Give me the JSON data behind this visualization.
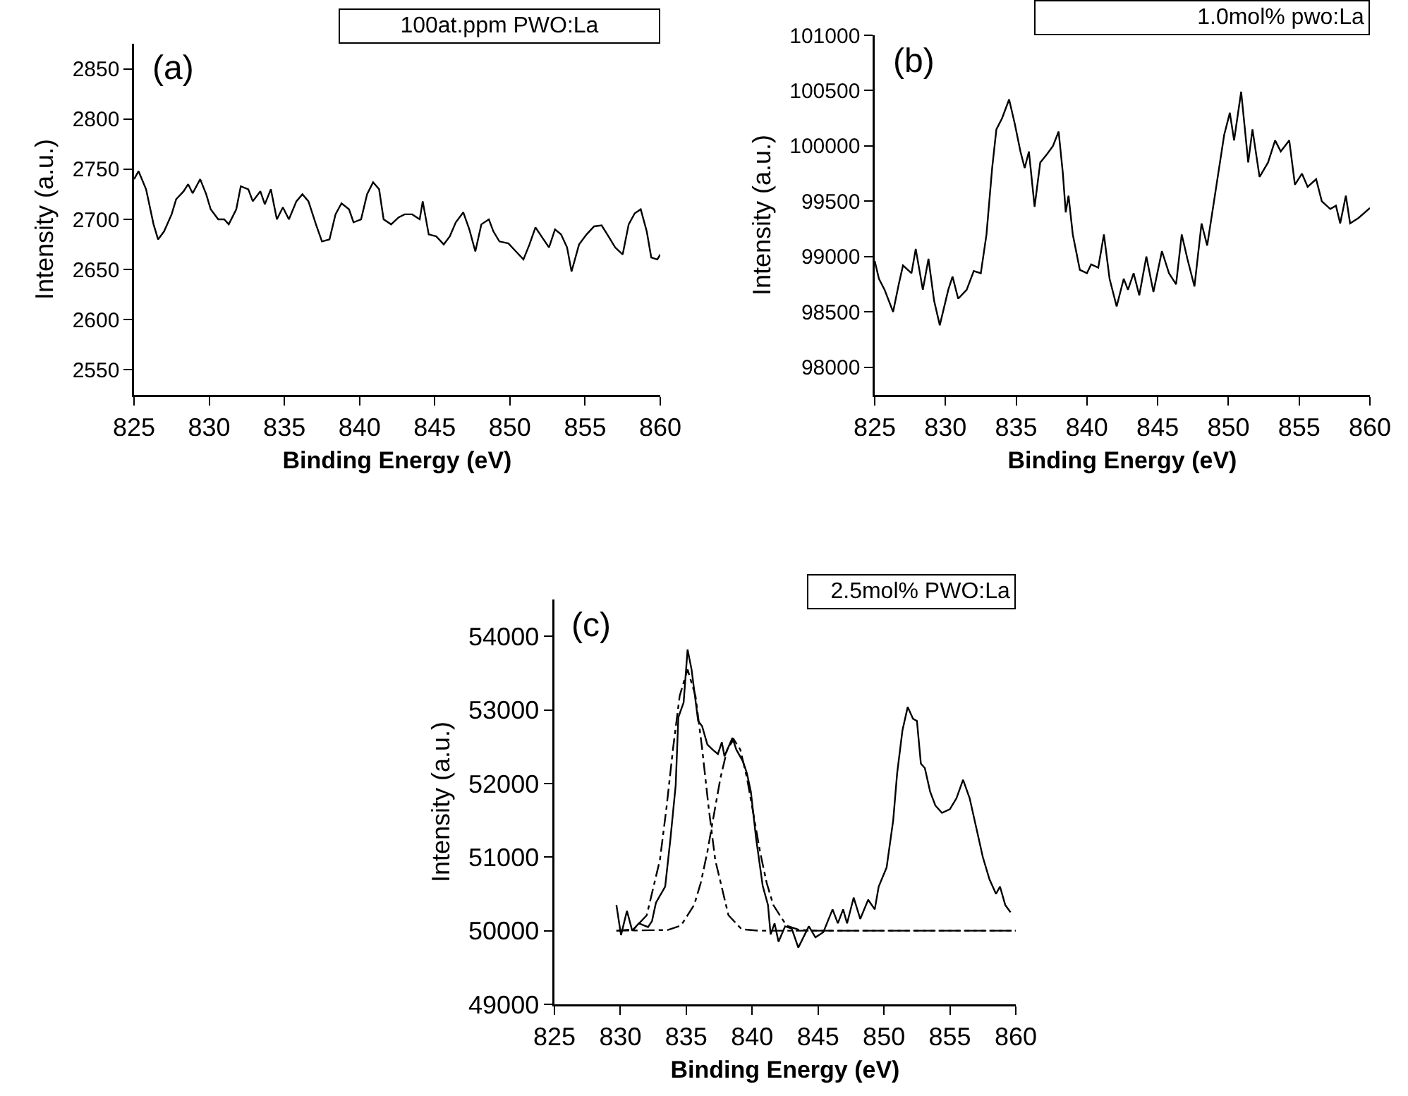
{
  "chart_data": [
    {
      "type": "line",
      "annotations": [
        "(a)",
        "100at.ppm PWO:La"
      ],
      "xlabel": "Binding Energy (eV)",
      "ylabel": "Intensity (a.u.)",
      "xlim": [
        825,
        860
      ],
      "xticks": [
        825,
        830,
        835,
        840,
        845,
        850,
        855,
        860
      ],
      "ylim": [
        2525,
        2875
      ],
      "yticks": [
        2550,
        2600,
        2650,
        2700,
        2750,
        2800,
        2850
      ],
      "series": [
        {
          "color": "#000000",
          "x": [
            825,
            825.3,
            825.8,
            826.3,
            826.6,
            827,
            827.5,
            827.8,
            828.3,
            828.6,
            828.9,
            829.4,
            829.8,
            830.1,
            830.6,
            831,
            831.3,
            831.8,
            832.1,
            832.6,
            832.9,
            833.4,
            833.7,
            834.1,
            834.5,
            834.9,
            835.3,
            835.8,
            836.2,
            836.6,
            837.1,
            837.5,
            838,
            838.4,
            838.8,
            839.3,
            839.6,
            840.1,
            840.5,
            840.9,
            841.3,
            841.6,
            842.1,
            842.6,
            843,
            843.5,
            844,
            844.2,
            844.6,
            845.1,
            845.6,
            846,
            846.4,
            846.9,
            847.3,
            847.7,
            848.1,
            848.6,
            848.9,
            849.3,
            849.9,
            850.4,
            850.9,
            851.3,
            851.7,
            852.1,
            852.6,
            853,
            853.4,
            853.8,
            854.1,
            854.6,
            855.1,
            855.6,
            856.1,
            856.6,
            857,
            857.5,
            857.9,
            858.3,
            858.7,
            859.1,
            859.4,
            859.8,
            860
          ],
          "values": [
            2740,
            2748,
            2730,
            2695,
            2680,
            2688,
            2705,
            2720,
            2728,
            2735,
            2726,
            2740,
            2725,
            2710,
            2700,
            2700,
            2695,
            2710,
            2733,
            2730,
            2718,
            2728,
            2715,
            2730,
            2700,
            2712,
            2700,
            2718,
            2725,
            2718,
            2695,
            2678,
            2680,
            2705,
            2716,
            2710,
            2697,
            2700,
            2725,
            2737,
            2730,
            2700,
            2695,
            2702,
            2705,
            2705,
            2700,
            2718,
            2685,
            2683,
            2675,
            2683,
            2697,
            2707,
            2690,
            2668,
            2695,
            2700,
            2688,
            2678,
            2676,
            2668,
            2660,
            2675,
            2692,
            2683,
            2672,
            2690,
            2685,
            2672,
            2648,
            2675,
            2685,
            2693,
            2694,
            2682,
            2672,
            2665,
            2695,
            2706,
            2710,
            2688,
            2662,
            2660,
            2665
          ]
        }
      ]
    },
    {
      "type": "line",
      "annotations": [
        "(b)",
        "1.0mol% pwo:La"
      ],
      "xlabel": "Binding Energy (eV)",
      "ylabel": "Intensity (a.u.)",
      "xlim": [
        825,
        860
      ],
      "xticks": [
        825,
        830,
        835,
        840,
        845,
        850,
        855,
        860
      ],
      "ylim": [
        97750,
        101000
      ],
      "yticks": [
        98000,
        98500,
        99000,
        99500,
        100000,
        100500,
        101000
      ],
      "series": [
        {
          "color": "#000000",
          "x": [
            825,
            825.3,
            825.7,
            826.3,
            826.7,
            827,
            827.6,
            827.9,
            828.4,
            828.8,
            829.2,
            829.6,
            830.2,
            830.5,
            830.9,
            831.5,
            832,
            832.5,
            832.9,
            833.3,
            833.6,
            834,
            834.5,
            834.9,
            835.3,
            835.6,
            835.9,
            836.3,
            836.7,
            837.2,
            837.6,
            838,
            838.3,
            838.5,
            838.7,
            839,
            839.5,
            840,
            840.3,
            840.8,
            841.2,
            841.6,
            842.1,
            842.6,
            842.9,
            843.3,
            843.7,
            844.2,
            844.7,
            845.3,
            845.8,
            846.3,
            846.7,
            847.1,
            847.6,
            848.1,
            848.5,
            849.1,
            849.7,
            850.1,
            850.4,
            850.9,
            851.4,
            851.7,
            852.2,
            852.8,
            853.3,
            853.7,
            854.3,
            854.7,
            855.2,
            855.6,
            856.2,
            856.6,
            857.2,
            857.6,
            857.9,
            858.3,
            858.6,
            859.2,
            860
          ],
          "values": [
            98960,
            98800,
            98700,
            98500,
            98750,
            98920,
            98850,
            99070,
            98700,
            98980,
            98600,
            98380,
            98700,
            98820,
            98620,
            98700,
            98870,
            98850,
            99200,
            99800,
            100150,
            100250,
            100420,
            100200,
            99950,
            99800,
            99950,
            99450,
            99850,
            99930,
            100000,
            100130,
            99750,
            99400,
            99550,
            99200,
            98880,
            98850,
            98930,
            98900,
            99200,
            98800,
            98550,
            98800,
            98700,
            98850,
            98650,
            99000,
            98680,
            99050,
            98850,
            98750,
            99200,
            98980,
            98730,
            99300,
            99100,
            99600,
            100100,
            100300,
            100050,
            100490,
            99850,
            100150,
            99720,
            99850,
            100050,
            99950,
            100050,
            99650,
            99750,
            99630,
            99700,
            99500,
            99430,
            99460,
            99300,
            99550,
            99300,
            99350,
            99440
          ]
        }
      ]
    },
    {
      "type": "line",
      "annotations": [
        "(c)",
        "2.5mol% PWO:La"
      ],
      "xlabel": "Binding Energy (eV)",
      "ylabel": "Intensity (a.u.)",
      "xlim": [
        825,
        860
      ],
      "xticks": [
        825,
        830,
        835,
        840,
        845,
        850,
        855,
        860
      ],
      "ylim": [
        49000,
        54500
      ],
      "yticks": [
        49000,
        50000,
        51000,
        52000,
        53000,
        54000
      ],
      "series": [
        {
          "color": "#000000",
          "x": [
            829.7,
            830.05,
            830.5,
            830.9,
            831.4,
            832.1,
            832.4,
            832.7,
            833.4,
            833.8,
            834.2,
            834.4,
            834.8,
            835.1,
            835.4,
            835.9,
            836.2,
            836.6,
            837,
            837.4,
            837.7,
            837.9,
            838.5,
            838.8,
            839.3,
            839.6,
            839.9,
            840.3,
            840.8,
            841.2,
            841.4,
            841.7,
            842,
            842.5,
            843,
            843.5,
            844.3,
            844.8,
            845.4,
            846.1,
            846.5,
            846.9,
            847.2,
            847.7,
            848.2,
            848.8,
            849.3,
            849.6,
            850.2,
            850.7,
            851,
            851.4,
            851.8,
            852.2,
            852.5,
            852.8,
            853.1,
            853.5,
            853.9,
            854.4,
            855,
            855.5,
            856,
            856.5,
            857,
            857.5,
            858,
            858.5,
            858.8,
            859.2,
            859.6
          ],
          "values": [
            50350,
            49940,
            50270,
            50000,
            50100,
            50050,
            50130,
            50380,
            50600,
            51250,
            51980,
            52900,
            53100,
            53820,
            53550,
            52850,
            52780,
            52530,
            52460,
            52400,
            52560,
            52370,
            52620,
            52460,
            52300,
            52140,
            51890,
            51250,
            50610,
            50350,
            49950,
            50100,
            49850,
            50060,
            50030,
            49770,
            50060,
            49910,
            49980,
            50290,
            50100,
            50290,
            50100,
            50450,
            50160,
            50420,
            50290,
            50600,
            50860,
            51500,
            52140,
            52720,
            53040,
            52880,
            52850,
            52270,
            52210,
            51890,
            51700,
            51600,
            51650,
            51800,
            52050,
            51800,
            51400,
            51000,
            50700,
            50500,
            50600,
            50350,
            50250
          ]
        },
        {
          "color": "#000000",
          "line_style": "dashed",
          "x": [
            829.7,
            831,
            832,
            833,
            833.5,
            834,
            834.5,
            835.1,
            835.7,
            836.2,
            836.7,
            837.2,
            838.2,
            839.2,
            840.5,
            860
          ],
          "values": [
            50000,
            50020,
            50210,
            50960,
            51670,
            52480,
            53190,
            53550,
            53190,
            52480,
            51670,
            50960,
            50210,
            50020,
            50000,
            50000
          ]
        },
        {
          "color": "#000000",
          "line_style": "dashed",
          "x": [
            829.7,
            833.6,
            834.6,
            835.6,
            836.1,
            836.6,
            837.1,
            837.6,
            838.1,
            838.6,
            839.1,
            839.6,
            840.1,
            840.6,
            841.1,
            841.6,
            842.6,
            843.6,
            845,
            860
          ],
          "values": [
            50000,
            50010,
            50070,
            50350,
            50650,
            51070,
            51580,
            52080,
            52460,
            52600,
            52460,
            52080,
            51580,
            51070,
            50650,
            50350,
            50070,
            50010,
            50000,
            50000
          ]
        }
      ]
    }
  ]
}
